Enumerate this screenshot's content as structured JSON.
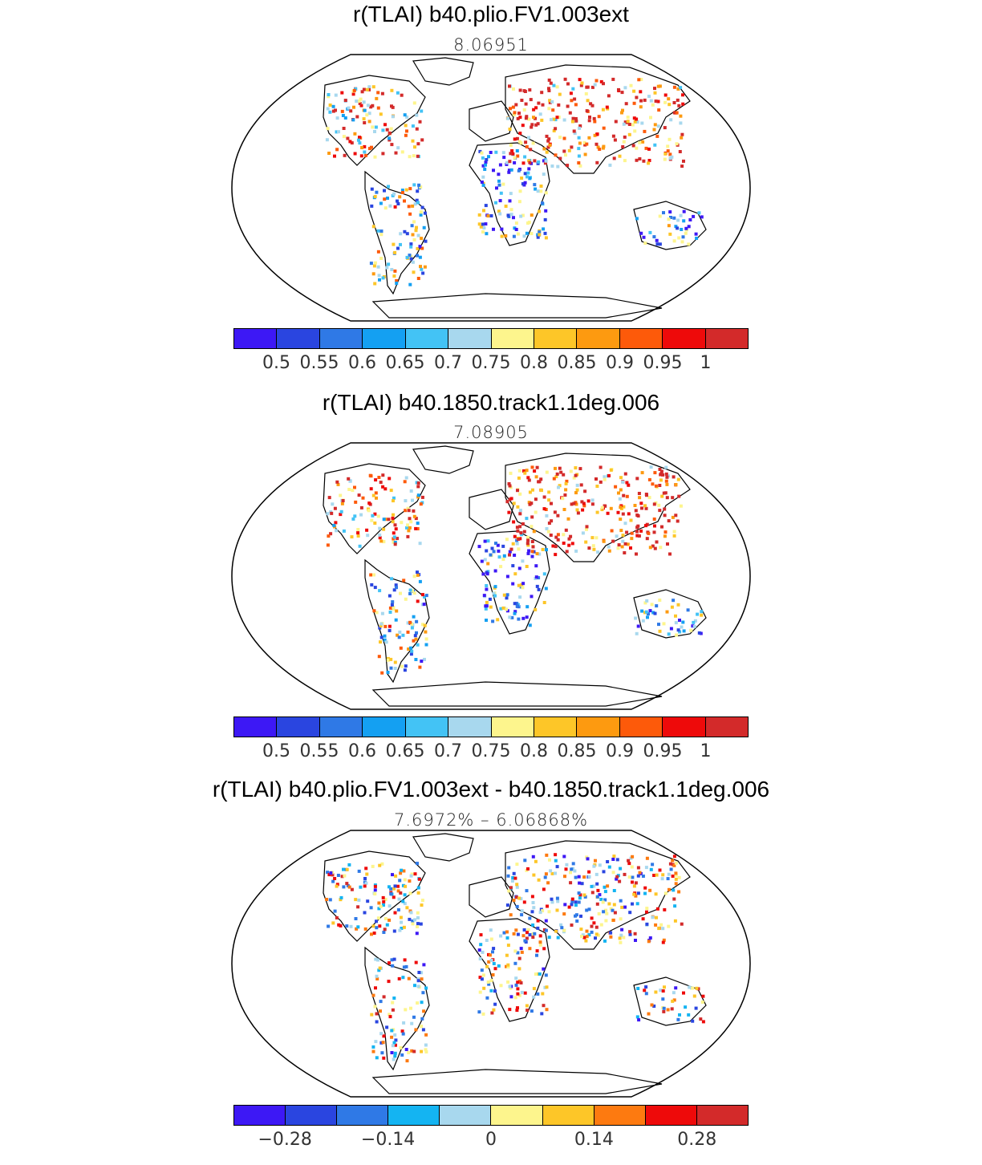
{
  "panels": [
    {
      "title": "r(TLAI) b40.plio.FV1.003ext",
      "subtitle": "8.06951",
      "colorbar": {
        "colors": [
          "#3d18f5",
          "#2a45e0",
          "#2f79e6",
          "#14a0f2",
          "#43c3f5",
          "#a8d8ee",
          "#fdf58d",
          "#fdc628",
          "#fd9a10",
          "#fd5a0a",
          "#ee0a0a",
          "#d32a2a"
        ],
        "labels": [
          "0.5",
          "0.55",
          "0.6",
          "0.65",
          "0.7",
          "0.75",
          "0.8",
          "0.85",
          "0.9",
          "0.95",
          "1"
        ]
      }
    },
    {
      "title": "r(TLAI) b40.1850.track1.1deg.006",
      "subtitle": "7.08905",
      "colorbar": {
        "colors": [
          "#3d18f5",
          "#2a45e0",
          "#2f79e6",
          "#14a0f2",
          "#43c3f5",
          "#a8d8ee",
          "#fdf58d",
          "#fdc628",
          "#fd9a10",
          "#fd5a0a",
          "#ee0a0a",
          "#d32a2a"
        ],
        "labels": [
          "0.5",
          "0.55",
          "0.6",
          "0.65",
          "0.7",
          "0.75",
          "0.8",
          "0.85",
          "0.9",
          "0.95",
          "1"
        ]
      }
    },
    {
      "title": "r(TLAI) b40.plio.FV1.003ext - b40.1850.track1.1deg.006",
      "subtitle": "7.6972% – 6.06868%",
      "colorbar": {
        "colors": [
          "#3d18f5",
          "#2a45e0",
          "#2f79e6",
          "#14b4f2",
          "#a8d8ee",
          "#fdf58d",
          "#fdc628",
          "#fd7a10",
          "#ee0a0a",
          "#d32a2a"
        ],
        "labels": [
          "−0.28",
          "−0.14",
          "0",
          "0.14",
          "0.28"
        ]
      }
    }
  ]
}
